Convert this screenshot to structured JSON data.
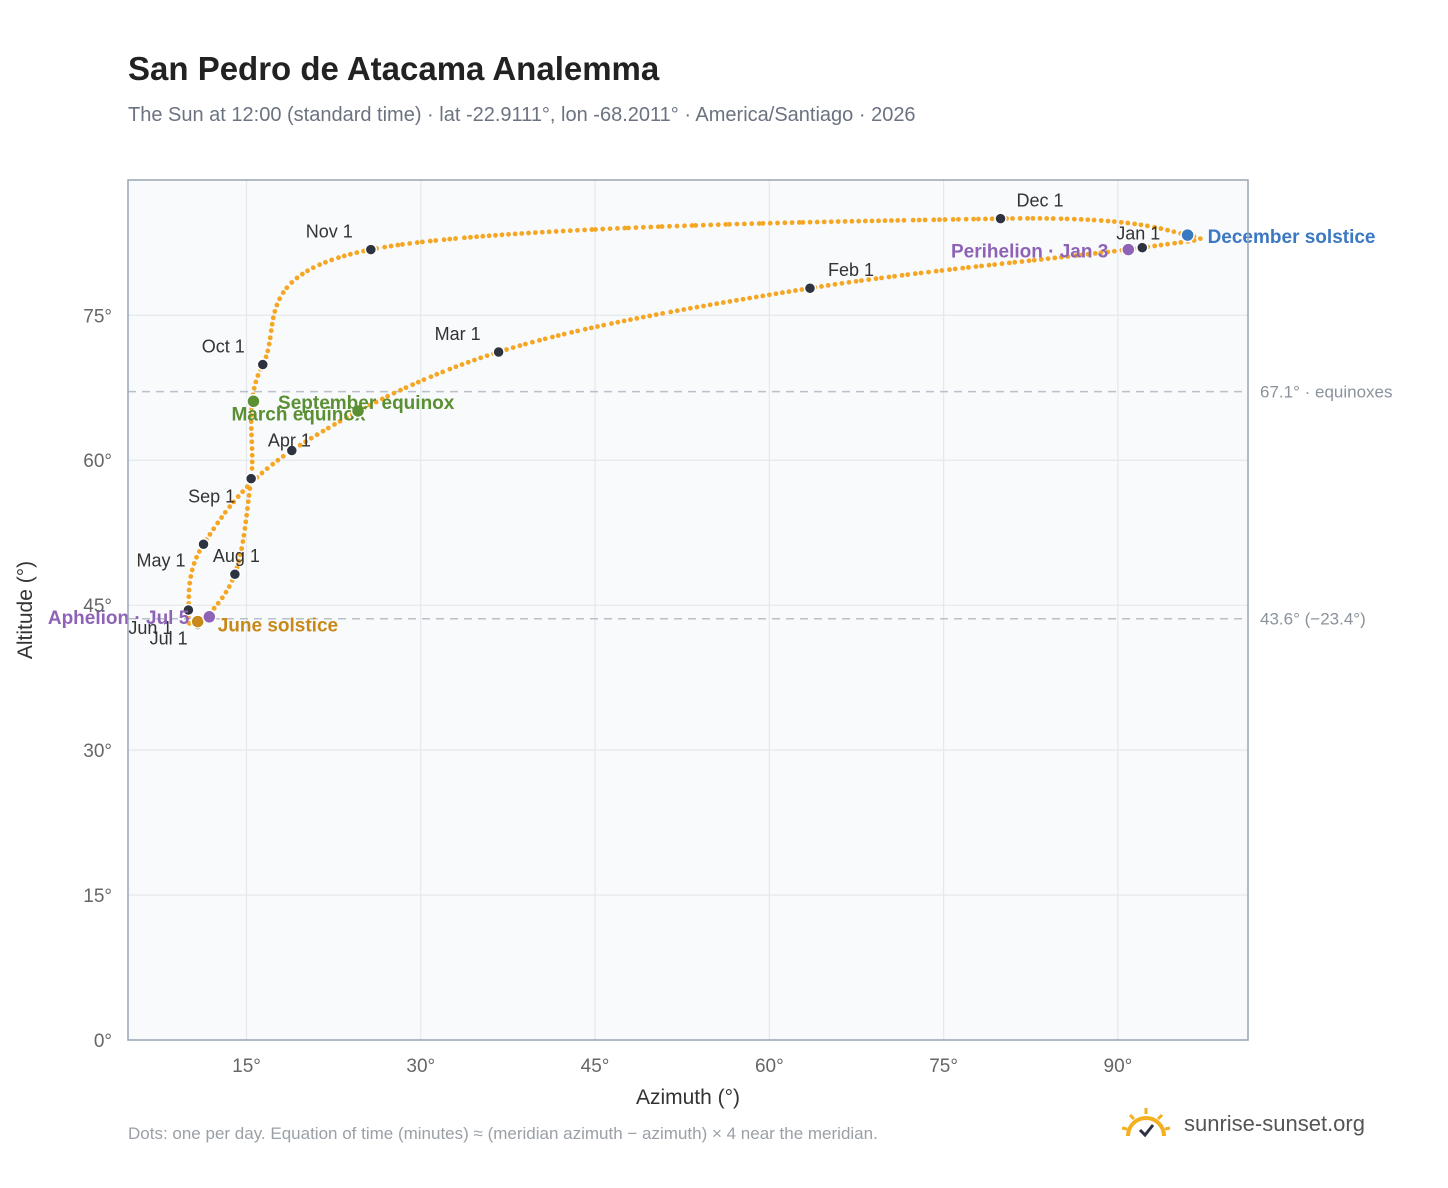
{
  "title": "San Pedro de Atacama Analemma",
  "subtitle": "The Sun at 12:00 (standard time) · lat -22.9111°, lon -68.2011° · America/Santiago · 2026",
  "footnote": "Dots: one per day. Equation of time (minutes) ≈ (meridian azimuth − azimuth) × 4 near the meridian.",
  "brand": {
    "text": "sunrise-sunset.org",
    "icon": "sun-logo-icon"
  },
  "colors": {
    "curve": "#f5a623",
    "month_dot": "#2d3340",
    "equinox": "#5a9032",
    "june_solstice": "#c78a1a",
    "december_solstice": "#3b78c2",
    "apsis": "#8e63b5",
    "grid": "#e5e8ec",
    "reference_line": "#b8c0ca",
    "plot_bg": "#f8fafc"
  },
  "chart_data": {
    "type": "scatter",
    "title": "San Pedro de Atacama Analemma",
    "xlabel": "Azimuth (°)",
    "ylabel": "Altitude (°)",
    "xlim": [
      4.8,
      101.2
    ],
    "ylim": [
      0,
      89
    ],
    "x_ticks": [
      15,
      30,
      45,
      60,
      75,
      90
    ],
    "x_tick_labels": [
      "15°",
      "30°",
      "45°",
      "60°",
      "75°",
      "90°"
    ],
    "y_ticks": [
      0,
      15,
      30,
      45,
      60,
      75
    ],
    "y_tick_labels": [
      "0°",
      "15°",
      "30°",
      "45°",
      "60°",
      "75°"
    ],
    "grid": true,
    "series": [
      {
        "kind": "daily-path",
        "points": [
          [
            96.0,
            83.3
          ],
          [
            92.1,
            82.0
          ],
          [
            63.5,
            77.8
          ],
          [
            36.7,
            71.2
          ],
          [
            18.9,
            61.0
          ],
          [
            11.3,
            51.3
          ],
          [
            10.0,
            44.5
          ],
          [
            10.8,
            43.0
          ],
          [
            14.0,
            48.2
          ],
          [
            15.4,
            58.1
          ],
          [
            16.4,
            69.9
          ],
          [
            25.7,
            81.8
          ],
          [
            79.9,
            85.0
          ],
          [
            96.0,
            83.3
          ]
        ]
      }
    ],
    "month_markers": [
      {
        "label": "Jan 1",
        "x": 92.1,
        "y": 82.0
      },
      {
        "label": "Feb 1",
        "x": 63.5,
        "y": 77.8
      },
      {
        "label": "Mar 1",
        "x": 36.7,
        "y": 71.2
      },
      {
        "label": "Apr 1",
        "x": 18.9,
        "y": 61.0
      },
      {
        "label": "May 1",
        "x": 11.3,
        "y": 51.3
      },
      {
        "label": "Jun 1",
        "x": 10.0,
        "y": 44.5
      },
      {
        "label": "Jul 1",
        "x": 10.8,
        "y": 43.0
      },
      {
        "label": "Aug 1",
        "x": 14.0,
        "y": 48.2
      },
      {
        "label": "Sep 1",
        "x": 15.4,
        "y": 58.1
      },
      {
        "label": "Oct 1",
        "x": 16.4,
        "y": 69.9
      },
      {
        "label": "Nov 1",
        "x": 25.7,
        "y": 81.8
      },
      {
        "label": "Dec 1",
        "x": 79.9,
        "y": 85.0
      }
    ],
    "events": [
      {
        "label": "March equinox",
        "x": 15.6,
        "y": 66.1,
        "color_key": "equinox"
      },
      {
        "label": "September equinox",
        "x": 24.6,
        "y": 65.1,
        "color_key": "equinox"
      },
      {
        "label": "June solstice",
        "x": 10.8,
        "y": 43.3,
        "color_key": "june_solstice"
      },
      {
        "label": "December solstice",
        "x": 96.0,
        "y": 83.3,
        "color_key": "december_solstice"
      },
      {
        "label": "Aphelion · Jul 5",
        "x": 11.8,
        "y": 43.8,
        "color_key": "apsis"
      },
      {
        "label": "Perihelion · Jan 3",
        "x": 90.9,
        "y": 81.8,
        "color_key": "apsis"
      }
    ],
    "reference_lines": [
      {
        "y": 67.1,
        "label": "67.1° · equinoxes"
      },
      {
        "y": 43.6,
        "label": "43.6° (−23.4°)"
      }
    ]
  }
}
